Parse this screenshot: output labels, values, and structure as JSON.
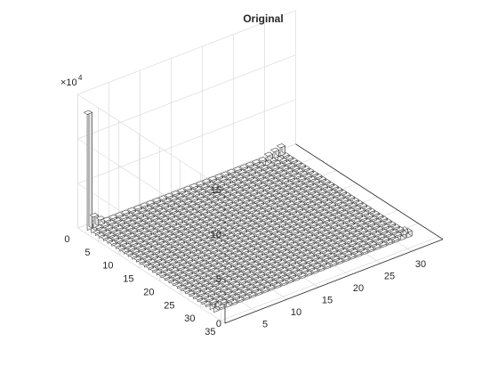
{
  "chart_data": {
    "type": "bar3",
    "title": "Original",
    "grid": true,
    "x_ticks": [
      "5",
      "10",
      "15",
      "20",
      "25",
      "30"
    ],
    "y_ticks": [
      "0",
      "5",
      "10",
      "15",
      "20",
      "25",
      "30",
      "35"
    ],
    "z_ticks": [
      "0",
      "5",
      "10",
      "15"
    ],
    "z_exponent_base": "×10",
    "z_exponent_power": "4",
    "zlim": [
      0,
      150000
    ],
    "x_range": [
      1,
      32
    ],
    "y_range": [
      1,
      32
    ],
    "baseline_value": 2000,
    "tall_bars": [
      {
        "x": 1,
        "y": 1,
        "value": 130000
      },
      {
        "x": 2,
        "y": 1,
        "value": 12000
      },
      {
        "x": 3,
        "y": 1,
        "value": 6000
      },
      {
        "x": 1,
        "y": 2,
        "value": 9000
      },
      {
        "x": 32,
        "y": 1,
        "value": 9000
      },
      {
        "x": 31,
        "y": 1,
        "value": 7000
      },
      {
        "x": 30,
        "y": 1,
        "value": 5000
      },
      {
        "x": 29,
        "y": 2,
        "value": 5000
      },
      {
        "x": 31,
        "y": 2,
        "value": 4500
      },
      {
        "x": 1,
        "y": 32,
        "value": 9000
      },
      {
        "x": 2,
        "y": 31,
        "value": 6000
      },
      {
        "x": 1,
        "y": 31,
        "value": 5000
      },
      {
        "x": 3,
        "y": 32,
        "value": 5000
      },
      {
        "x": 32,
        "y": 32,
        "value": 6000
      },
      {
        "x": 31,
        "y": 32,
        "value": 5000
      },
      {
        "x": 32,
        "y": 31,
        "value": 5000
      }
    ]
  }
}
